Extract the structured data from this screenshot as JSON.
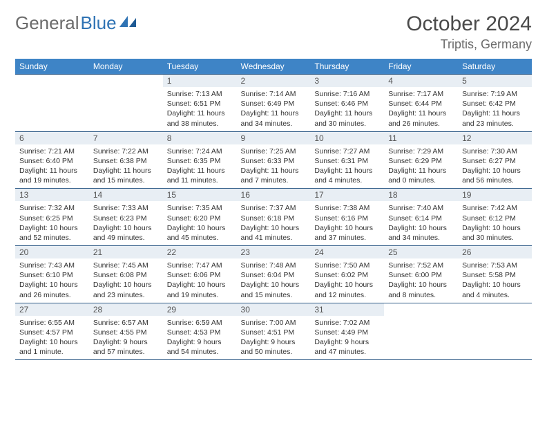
{
  "brand": {
    "text_1": "General",
    "text_2": "Blue"
  },
  "title": "October 2024",
  "location": "Triptis, Germany",
  "colors": {
    "header_bg": "#3e84c6",
    "header_text": "#ffffff",
    "border": "#2f5b87",
    "daynum_bg": "#e8eef4",
    "logo_grey": "#6b6b6b",
    "logo_blue": "#2f73b4"
  },
  "daysOfWeek": [
    "Sunday",
    "Monday",
    "Tuesday",
    "Wednesday",
    "Thursday",
    "Friday",
    "Saturday"
  ],
  "grid": [
    [
      {
        "empty": true
      },
      {
        "empty": true
      },
      {
        "num": "1",
        "sunrise": "7:13 AM",
        "sunset": "6:51 PM",
        "daylight": "11 hours and 38 minutes."
      },
      {
        "num": "2",
        "sunrise": "7:14 AM",
        "sunset": "6:49 PM",
        "daylight": "11 hours and 34 minutes."
      },
      {
        "num": "3",
        "sunrise": "7:16 AM",
        "sunset": "6:46 PM",
        "daylight": "11 hours and 30 minutes."
      },
      {
        "num": "4",
        "sunrise": "7:17 AM",
        "sunset": "6:44 PM",
        "daylight": "11 hours and 26 minutes."
      },
      {
        "num": "5",
        "sunrise": "7:19 AM",
        "sunset": "6:42 PM",
        "daylight": "11 hours and 23 minutes."
      }
    ],
    [
      {
        "num": "6",
        "sunrise": "7:21 AM",
        "sunset": "6:40 PM",
        "daylight": "11 hours and 19 minutes."
      },
      {
        "num": "7",
        "sunrise": "7:22 AM",
        "sunset": "6:38 PM",
        "daylight": "11 hours and 15 minutes."
      },
      {
        "num": "8",
        "sunrise": "7:24 AM",
        "sunset": "6:35 PM",
        "daylight": "11 hours and 11 minutes."
      },
      {
        "num": "9",
        "sunrise": "7:25 AM",
        "sunset": "6:33 PM",
        "daylight": "11 hours and 7 minutes."
      },
      {
        "num": "10",
        "sunrise": "7:27 AM",
        "sunset": "6:31 PM",
        "daylight": "11 hours and 4 minutes."
      },
      {
        "num": "11",
        "sunrise": "7:29 AM",
        "sunset": "6:29 PM",
        "daylight": "11 hours and 0 minutes."
      },
      {
        "num": "12",
        "sunrise": "7:30 AM",
        "sunset": "6:27 PM",
        "daylight": "10 hours and 56 minutes."
      }
    ],
    [
      {
        "num": "13",
        "sunrise": "7:32 AM",
        "sunset": "6:25 PM",
        "daylight": "10 hours and 52 minutes."
      },
      {
        "num": "14",
        "sunrise": "7:33 AM",
        "sunset": "6:23 PM",
        "daylight": "10 hours and 49 minutes."
      },
      {
        "num": "15",
        "sunrise": "7:35 AM",
        "sunset": "6:20 PM",
        "daylight": "10 hours and 45 minutes."
      },
      {
        "num": "16",
        "sunrise": "7:37 AM",
        "sunset": "6:18 PM",
        "daylight": "10 hours and 41 minutes."
      },
      {
        "num": "17",
        "sunrise": "7:38 AM",
        "sunset": "6:16 PM",
        "daylight": "10 hours and 37 minutes."
      },
      {
        "num": "18",
        "sunrise": "7:40 AM",
        "sunset": "6:14 PM",
        "daylight": "10 hours and 34 minutes."
      },
      {
        "num": "19",
        "sunrise": "7:42 AM",
        "sunset": "6:12 PM",
        "daylight": "10 hours and 30 minutes."
      }
    ],
    [
      {
        "num": "20",
        "sunrise": "7:43 AM",
        "sunset": "6:10 PM",
        "daylight": "10 hours and 26 minutes."
      },
      {
        "num": "21",
        "sunrise": "7:45 AM",
        "sunset": "6:08 PM",
        "daylight": "10 hours and 23 minutes."
      },
      {
        "num": "22",
        "sunrise": "7:47 AM",
        "sunset": "6:06 PM",
        "daylight": "10 hours and 19 minutes."
      },
      {
        "num": "23",
        "sunrise": "7:48 AM",
        "sunset": "6:04 PM",
        "daylight": "10 hours and 15 minutes."
      },
      {
        "num": "24",
        "sunrise": "7:50 AM",
        "sunset": "6:02 PM",
        "daylight": "10 hours and 12 minutes."
      },
      {
        "num": "25",
        "sunrise": "7:52 AM",
        "sunset": "6:00 PM",
        "daylight": "10 hours and 8 minutes."
      },
      {
        "num": "26",
        "sunrise": "7:53 AM",
        "sunset": "5:58 PM",
        "daylight": "10 hours and 4 minutes."
      }
    ],
    [
      {
        "num": "27",
        "sunrise": "6:55 AM",
        "sunset": "4:57 PM",
        "daylight": "10 hours and 1 minute."
      },
      {
        "num": "28",
        "sunrise": "6:57 AM",
        "sunset": "4:55 PM",
        "daylight": "9 hours and 57 minutes."
      },
      {
        "num": "29",
        "sunrise": "6:59 AM",
        "sunset": "4:53 PM",
        "daylight": "9 hours and 54 minutes."
      },
      {
        "num": "30",
        "sunrise": "7:00 AM",
        "sunset": "4:51 PM",
        "daylight": "9 hours and 50 minutes."
      },
      {
        "num": "31",
        "sunrise": "7:02 AM",
        "sunset": "4:49 PM",
        "daylight": "9 hours and 47 minutes."
      },
      {
        "empty": true
      },
      {
        "empty": true
      }
    ]
  ],
  "labels": {
    "sunrise": "Sunrise: ",
    "sunset": "Sunset: ",
    "daylight": "Daylight: "
  }
}
